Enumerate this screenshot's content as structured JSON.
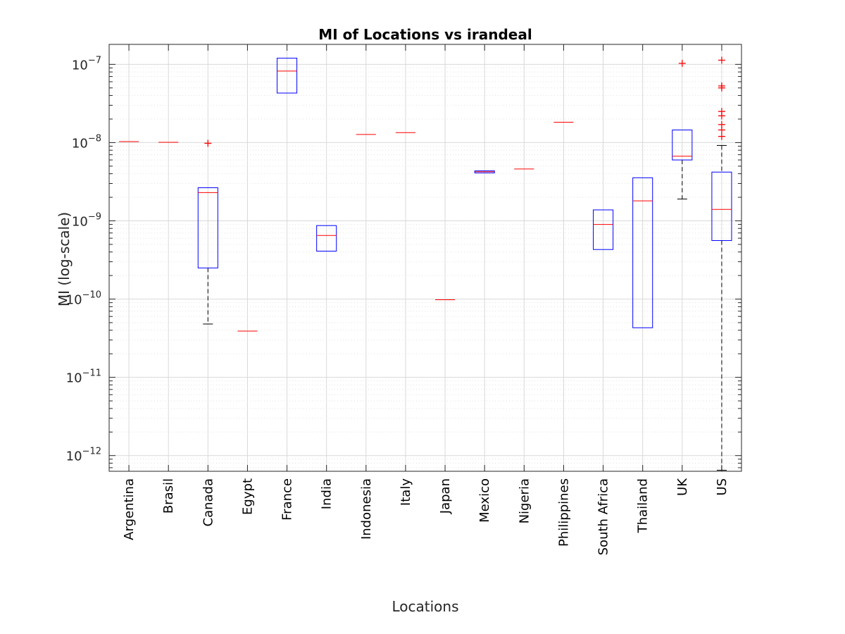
{
  "chart_data": {
    "type": "box",
    "title": "MI of Locations vs irandeal",
    "xlabel": "Locations",
    "ylabel": "MI (log-scale)",
    "yscale": "log",
    "ylim": [
      6.3e-13,
      1.8e-07
    ],
    "grid": true,
    "y_ticks": [
      {
        "value": 1e-12,
        "base": "10",
        "exp": "−12"
      },
      {
        "value": 1e-11,
        "base": "10",
        "exp": "−11"
      },
      {
        "value": 1e-10,
        "base": "10",
        "exp": "−10"
      },
      {
        "value": 1e-09,
        "base": "10",
        "exp": "−9"
      },
      {
        "value": 1e-08,
        "base": "10",
        "exp": "−8"
      },
      {
        "value": 1e-07,
        "base": "10",
        "exp": "−7"
      }
    ],
    "colors": {
      "box": "#0000ff",
      "median": "#ff0000",
      "whisker": "#000000",
      "outlier": "#ff0000"
    },
    "categories": [
      "Argentina",
      "Brasil",
      "Canada",
      "Egypt",
      "France",
      "India",
      "Indonesia",
      "Italy",
      "Japan",
      "Mexico",
      "Nigeria",
      "Philippines",
      "South Africa",
      "Thailand",
      "UK",
      "US"
    ],
    "boxes": [
      {
        "q1": 1.03e-08,
        "median": 1.03e-08,
        "q3": 1.03e-08,
        "whisker_low": 1.03e-08,
        "whisker_high": 1.03e-08,
        "outliers": []
      },
      {
        "q1": 1.01e-08,
        "median": 1.01e-08,
        "q3": 1.01e-08,
        "whisker_low": 1.01e-08,
        "whisker_high": 1.01e-08,
        "outliers": []
      },
      {
        "q1": 2.5e-10,
        "median": 2.3e-09,
        "q3": 2.65e-09,
        "whisker_low": 4.8e-11,
        "whisker_high": 2.65e-09,
        "outliers": [
          9.8e-09
        ]
      },
      {
        "q1": 3.9e-11,
        "median": 3.9e-11,
        "q3": 3.9e-11,
        "whisker_low": 3.9e-11,
        "whisker_high": 3.9e-11,
        "outliers": []
      },
      {
        "q1": 4.3e-08,
        "median": 8.2e-08,
        "q3": 1.2e-07,
        "whisker_low": 4.3e-08,
        "whisker_high": 1.2e-07,
        "outliers": []
      },
      {
        "q1": 4.1e-10,
        "median": 6.5e-10,
        "q3": 8.7e-10,
        "whisker_low": 4.1e-10,
        "whisker_high": 8.7e-10,
        "outliers": []
      },
      {
        "q1": 1.27e-08,
        "median": 1.27e-08,
        "q3": 1.27e-08,
        "whisker_low": 1.27e-08,
        "whisker_high": 1.27e-08,
        "outliers": []
      },
      {
        "q1": 1.34e-08,
        "median": 1.34e-08,
        "q3": 1.34e-08,
        "whisker_low": 1.34e-08,
        "whisker_high": 1.34e-08,
        "outliers": []
      },
      {
        "q1": 9.8e-11,
        "median": 9.8e-11,
        "q3": 9.8e-11,
        "whisker_low": 9.8e-11,
        "whisker_high": 9.8e-11,
        "outliers": []
      },
      {
        "q1": 4.1e-09,
        "median": 4.25e-09,
        "q3": 4.35e-09,
        "whisker_low": 4.1e-09,
        "whisker_high": 4.35e-09,
        "outliers": []
      },
      {
        "q1": 4.6e-09,
        "median": 4.6e-09,
        "q3": 4.6e-09,
        "whisker_low": 4.6e-09,
        "whisker_high": 4.6e-09,
        "outliers": []
      },
      {
        "q1": 1.82e-08,
        "median": 1.82e-08,
        "q3": 1.82e-08,
        "whisker_low": 1.82e-08,
        "whisker_high": 1.82e-08,
        "outliers": []
      },
      {
        "q1": 4.3e-10,
        "median": 9e-10,
        "q3": 1.38e-09,
        "whisker_low": 4.3e-10,
        "whisker_high": 1.38e-09,
        "outliers": []
      },
      {
        "q1": 4.3e-11,
        "median": 1.8e-09,
        "q3": 3.55e-09,
        "whisker_low": 4.3e-11,
        "whisker_high": 3.55e-09,
        "outliers": []
      },
      {
        "q1": 6e-09,
        "median": 6.7e-09,
        "q3": 1.45e-08,
        "whisker_low": 1.9e-09,
        "whisker_high": 1.45e-08,
        "outliers": [
          1.03e-07
        ]
      },
      {
        "q1": 5.6e-10,
        "median": 1.4e-09,
        "q3": 4.2e-09,
        "whisker_low": 6.5e-13,
        "whisker_high": 9.2e-09,
        "outliers": [
          1.13e-07,
          5.3e-08,
          5e-08,
          2.5e-08,
          2.2e-08,
          1.7e-08,
          1.45e-08,
          1.2e-08
        ]
      }
    ]
  }
}
